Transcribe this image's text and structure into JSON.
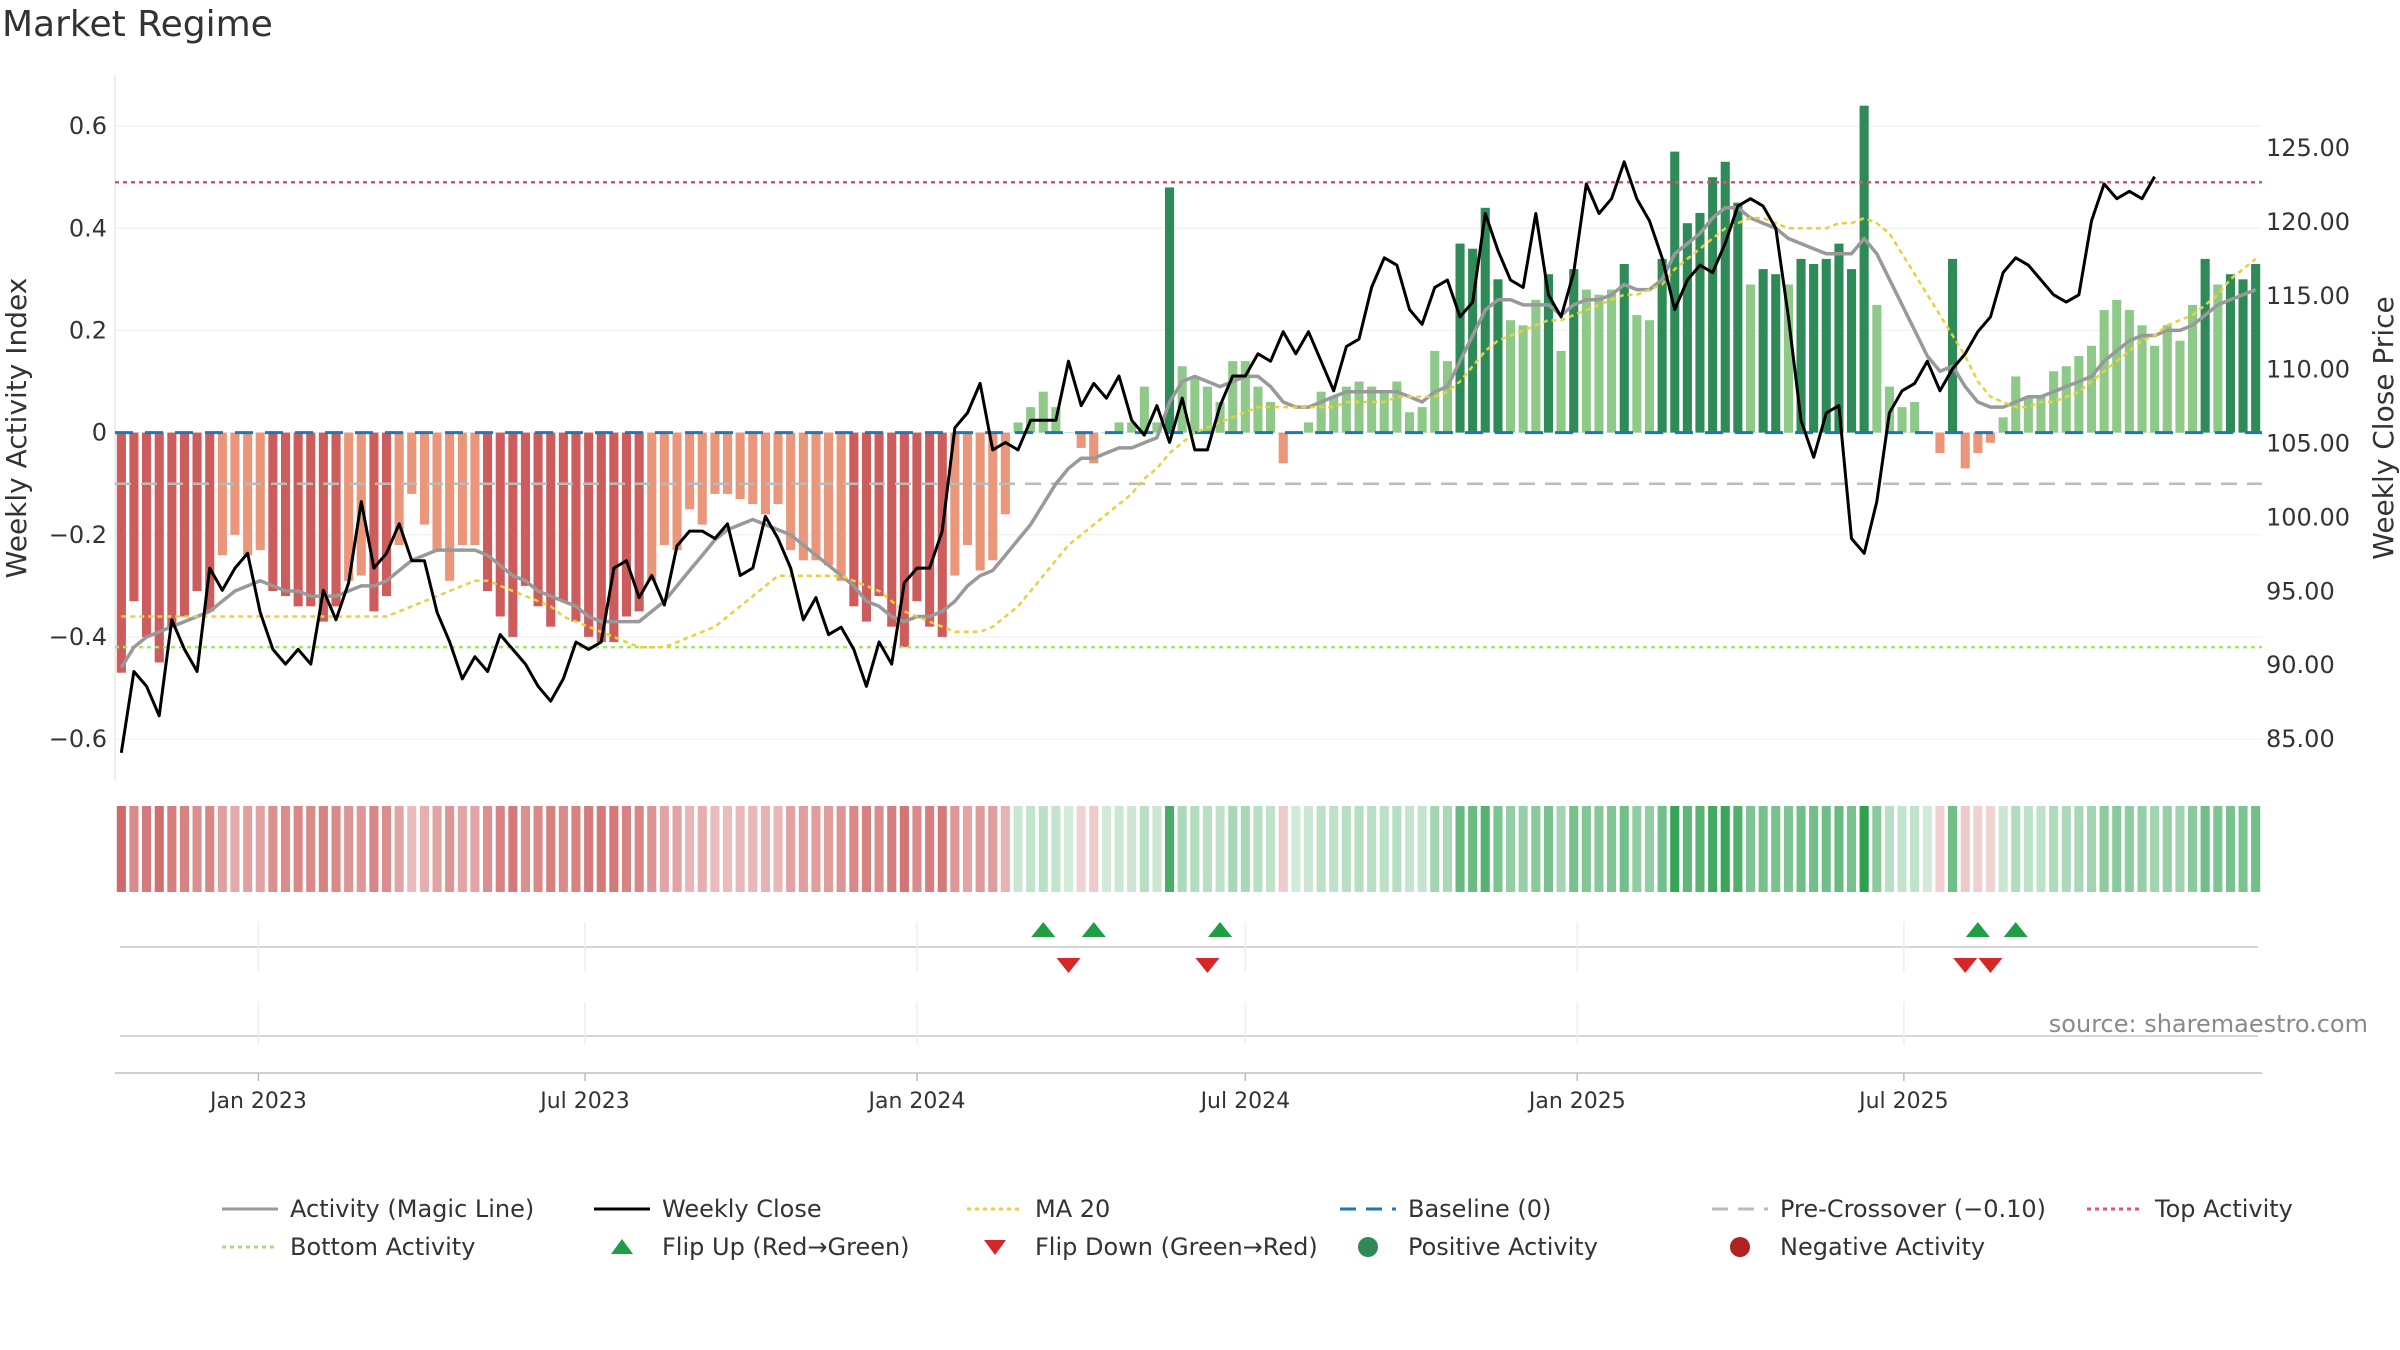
{
  "title": "Market Regime",
  "source": "source: sharemaestro.com",
  "colors": {
    "bar_pos_strong": "#2e8b57",
    "bar_pos_light": "#8fc98a",
    "bar_neg_strong": "#cd5c5c",
    "bar_neg_light": "#e9967a",
    "magic_line": "#999999",
    "weekly_close": "#000000",
    "ma20": "#e6d23c",
    "baseline": "#1f77b4",
    "pre_crossover": "#bbbbbb",
    "top_activity": "#e05070",
    "bottom_activity": "#a6e36b",
    "flip_up": "#1f9e45",
    "flip_down": "#d62728"
  },
  "chart_data": {
    "type": "bar+line",
    "x_axis": {
      "start": "2022-10-17",
      "interval": "weekly",
      "tick_labels": [
        "Jan 2023",
        "Jul 2023",
        "Jan 2024",
        "Jul 2024",
        "Jan 2025",
        "Jul 2025"
      ],
      "tick_dates": [
        "2023-01-01",
        "2023-07-01",
        "2024-01-01",
        "2024-07-01",
        "2025-01-01",
        "2025-07-01"
      ]
    },
    "y_left": {
      "label": "Weekly Activity Index",
      "ticks": [
        -0.6,
        -0.4,
        -0.2,
        0,
        0.2,
        0.4,
        0.6
      ],
      "tick_labels": [
        "−0.6",
        "−0.4",
        "−0.2",
        "0",
        "0.2",
        "0.4",
        "0.6"
      ],
      "range": [
        -0.68,
        0.7
      ]
    },
    "y_right": {
      "label": "Weekly Close Price",
      "ticks": [
        85,
        90,
        95,
        100,
        105,
        110,
        115,
        120,
        125
      ],
      "tick_labels": [
        "85.00",
        "90.00",
        "95.00",
        "100.00",
        "105.00",
        "110.00",
        "115.00",
        "120.00",
        "125.00"
      ]
    },
    "reference_lines": {
      "top_activity": 0.49,
      "bottom_activity": -0.42,
      "pre_crossover": -0.1,
      "baseline": 0
    },
    "activity": [
      -0.47,
      -0.33,
      -0.4,
      -0.45,
      -0.38,
      -0.36,
      -0.31,
      -0.35,
      -0.24,
      -0.2,
      -0.24,
      -0.23,
      -0.31,
      -0.32,
      -0.34,
      -0.34,
      -0.37,
      -0.34,
      -0.29,
      -0.28,
      -0.35,
      -0.32,
      -0.22,
      -0.12,
      -0.18,
      -0.23,
      -0.29,
      -0.22,
      -0.22,
      -0.31,
      -0.36,
      -0.4,
      -0.3,
      -0.34,
      -0.38,
      -0.33,
      -0.37,
      -0.4,
      -0.41,
      -0.41,
      -0.36,
      -0.35,
      -0.29,
      -0.22,
      -0.23,
      -0.15,
      -0.18,
      -0.12,
      -0.12,
      -0.13,
      -0.14,
      -0.16,
      -0.14,
      -0.23,
      -0.25,
      -0.25,
      -0.26,
      -0.29,
      -0.34,
      -0.37,
      -0.32,
      -0.38,
      -0.42,
      -0.33,
      -0.38,
      -0.4,
      -0.28,
      -0.22,
      -0.27,
      -0.25,
      -0.16,
      0.02,
      0.05,
      0.08,
      0.05,
      0.0,
      -0.03,
      -0.06,
      0.0,
      0.02,
      0.02,
      0.09,
      0.02,
      0.48,
      0.13,
      0.11,
      0.09,
      0.06,
      0.14,
      0.14,
      0.09,
      0.06,
      -0.06,
      0.0,
      0.02,
      0.08,
      0.07,
      0.09,
      0.1,
      0.09,
      0.08,
      0.1,
      0.04,
      0.05,
      0.16,
      0.14,
      0.37,
      0.36,
      0.44,
      0.3,
      0.22,
      0.21,
      0.26,
      0.31,
      0.16,
      0.32,
      0.28,
      0.27,
      0.28,
      0.33,
      0.23,
      0.22,
      0.34,
      0.55,
      0.41,
      0.43,
      0.5,
      0.53,
      0.45,
      0.29,
      0.32,
      0.31,
      0.29,
      0.34,
      0.33,
      0.34,
      0.37,
      0.32,
      0.64,
      0.25,
      0.09,
      0.05,
      0.06,
      0.0,
      -0.04,
      0.34,
      -0.07,
      -0.04,
      -0.02,
      0.03,
      0.11,
      0.07,
      0.07,
      0.12,
      0.13,
      0.15,
      0.17,
      0.24,
      0.26,
      0.24,
      0.21,
      0.17,
      0.21,
      0.18,
      0.25,
      0.34,
      0.29,
      0.31,
      0.3,
      0.33
    ],
    "magic_line": [
      -0.46,
      -0.42,
      -0.4,
      -0.39,
      -0.38,
      -0.37,
      -0.36,
      -0.35,
      -0.33,
      -0.31,
      -0.3,
      -0.29,
      -0.3,
      -0.31,
      -0.31,
      -0.32,
      -0.32,
      -0.32,
      -0.31,
      -0.3,
      -0.3,
      -0.29,
      -0.27,
      -0.25,
      -0.24,
      -0.23,
      -0.23,
      -0.23,
      -0.23,
      -0.24,
      -0.26,
      -0.28,
      -0.29,
      -0.31,
      -0.32,
      -0.33,
      -0.34,
      -0.36,
      -0.37,
      -0.37,
      -0.37,
      -0.37,
      -0.35,
      -0.33,
      -0.3,
      -0.27,
      -0.24,
      -0.21,
      -0.19,
      -0.18,
      -0.17,
      -0.18,
      -0.19,
      -0.2,
      -0.22,
      -0.24,
      -0.26,
      -0.28,
      -0.3,
      -0.33,
      -0.34,
      -0.36,
      -0.37,
      -0.36,
      -0.36,
      -0.35,
      -0.33,
      -0.3,
      -0.28,
      -0.27,
      -0.24,
      -0.21,
      -0.18,
      -0.14,
      -0.1,
      -0.07,
      -0.05,
      -0.05,
      -0.04,
      -0.03,
      -0.03,
      -0.02,
      -0.01,
      0.06,
      0.1,
      0.11,
      0.1,
      0.09,
      0.1,
      0.11,
      0.11,
      0.09,
      0.06,
      0.05,
      0.05,
      0.06,
      0.07,
      0.08,
      0.08,
      0.08,
      0.08,
      0.08,
      0.07,
      0.06,
      0.08,
      0.09,
      0.14,
      0.19,
      0.24,
      0.26,
      0.26,
      0.25,
      0.25,
      0.25,
      0.23,
      0.25,
      0.26,
      0.26,
      0.27,
      0.29,
      0.28,
      0.28,
      0.3,
      0.35,
      0.37,
      0.39,
      0.42,
      0.44,
      0.44,
      0.42,
      0.41,
      0.4,
      0.38,
      0.37,
      0.36,
      0.35,
      0.35,
      0.35,
      0.38,
      0.35,
      0.3,
      0.25,
      0.2,
      0.15,
      0.12,
      0.13,
      0.09,
      0.06,
      0.05,
      0.05,
      0.06,
      0.07,
      0.07,
      0.08,
      0.09,
      0.1,
      0.11,
      0.14,
      0.16,
      0.18,
      0.19,
      0.19,
      0.2,
      0.2,
      0.21,
      0.23,
      0.25,
      0.26,
      0.27,
      0.28
    ],
    "ma20": [
      -0.36,
      -0.36,
      -0.36,
      -0.36,
      -0.36,
      -0.36,
      -0.36,
      -0.36,
      -0.36,
      -0.36,
      -0.36,
      -0.36,
      -0.36,
      -0.36,
      -0.36,
      -0.36,
      -0.36,
      -0.36,
      -0.36,
      -0.36,
      -0.36,
      -0.36,
      -0.35,
      -0.34,
      -0.33,
      -0.32,
      -0.31,
      -0.3,
      -0.29,
      -0.29,
      -0.3,
      -0.31,
      -0.32,
      -0.33,
      -0.34,
      -0.36,
      -0.37,
      -0.38,
      -0.39,
      -0.4,
      -0.41,
      -0.42,
      -0.42,
      -0.42,
      -0.41,
      -0.4,
      -0.39,
      -0.38,
      -0.36,
      -0.34,
      -0.32,
      -0.3,
      -0.28,
      -0.28,
      -0.28,
      -0.28,
      -0.28,
      -0.28,
      -0.29,
      -0.3,
      -0.31,
      -0.33,
      -0.35,
      -0.36,
      -0.37,
      -0.38,
      -0.39,
      -0.39,
      -0.39,
      -0.38,
      -0.36,
      -0.34,
      -0.31,
      -0.28,
      -0.25,
      -0.22,
      -0.2,
      -0.18,
      -0.16,
      -0.14,
      -0.12,
      -0.09,
      -0.07,
      -0.04,
      -0.02,
      0.0,
      0.01,
      0.02,
      0.03,
      0.04,
      0.05,
      0.05,
      0.05,
      0.05,
      0.05,
      0.05,
      0.05,
      0.06,
      0.06,
      0.06,
      0.06,
      0.07,
      0.07,
      0.07,
      0.07,
      0.08,
      0.1,
      0.13,
      0.16,
      0.18,
      0.19,
      0.2,
      0.21,
      0.22,
      0.22,
      0.23,
      0.24,
      0.25,
      0.26,
      0.27,
      0.27,
      0.28,
      0.29,
      0.32,
      0.34,
      0.36,
      0.38,
      0.4,
      0.41,
      0.42,
      0.42,
      0.41,
      0.4,
      0.4,
      0.4,
      0.4,
      0.41,
      0.41,
      0.42,
      0.41,
      0.39,
      0.35,
      0.31,
      0.27,
      0.23,
      0.19,
      0.15,
      0.1,
      0.07,
      0.06,
      0.05,
      0.05,
      0.06,
      0.06,
      0.07,
      0.08,
      0.1,
      0.12,
      0.14,
      0.16,
      0.18,
      0.19,
      0.21,
      0.22,
      0.23,
      0.25,
      0.27,
      0.3,
      0.32,
      0.34
    ],
    "weekly_close": [
      84.0,
      89.5,
      88.5,
      86.5,
      93.0,
      91.0,
      89.5,
      96.5,
      95.0,
      96.5,
      97.5,
      93.5,
      91.0,
      90.0,
      91.0,
      90.0,
      95.0,
      93.0,
      95.5,
      101.0,
      96.5,
      97.5,
      99.5,
      97.0,
      97.0,
      93.5,
      91.5,
      89.0,
      90.5,
      89.5,
      92.0,
      91.0,
      90.0,
      88.5,
      87.5,
      89.0,
      91.5,
      91.0,
      91.5,
      96.5,
      97.0,
      94.5,
      96.0,
      94.0,
      98.0,
      99.0,
      99.0,
      98.5,
      99.5,
      96.0,
      96.5,
      100.0,
      98.5,
      96.5,
      93.0,
      94.5,
      92.0,
      92.5,
      91.0,
      88.5,
      91.5,
      90.0,
      95.5,
      96.5,
      96.5,
      99.0,
      106.0,
      107.0,
      109.0,
      104.5,
      105.0,
      104.5,
      106.5,
      106.5,
      106.5,
      110.5,
      107.5,
      109.0,
      108.0,
      109.5,
      106.5,
      105.5,
      107.5,
      105.0,
      108.0,
      104.5,
      104.5,
      107.5,
      109.5,
      109.5,
      111.0,
      110.5,
      112.5,
      111.0,
      112.5,
      110.5,
      108.5,
      111.5,
      112.0,
      115.5,
      117.5,
      117.0,
      114.0,
      113.0,
      115.5,
      116.0,
      113.5,
      114.5,
      120.5,
      118.0,
      116.0,
      115.5,
      120.5,
      115.0,
      113.5,
      116.5,
      122.5,
      120.5,
      121.5,
      124.0,
      121.5,
      120.0,
      117.5,
      114.0,
      116.0,
      117.0,
      116.5,
      118.5,
      121.0,
      121.5,
      121.0,
      119.5,
      113.5,
      106.5,
      104.0,
      107.0,
      107.5,
      98.5,
      97.5,
      101.0,
      107.0,
      108.5,
      109.0,
      110.5,
      108.5,
      110.0,
      111.0,
      112.5,
      113.5,
      116.5,
      117.5,
      117.0,
      116.0,
      115.0,
      114.5,
      115.0,
      120.0,
      122.5,
      121.5,
      122.0,
      121.5,
      123.0
    ],
    "flip_up_index": [
      73,
      77,
      87,
      147,
      150
    ],
    "flip_down_index": [
      75,
      86,
      146,
      148
    ]
  },
  "legend": [
    {
      "key": "magic",
      "label": "Activity (Magic Line)",
      "kind": "line",
      "color": "#999999",
      "dash": "solid"
    },
    {
      "key": "close",
      "label": "Weekly Close",
      "kind": "line",
      "color": "#000000",
      "dash": "solid"
    },
    {
      "key": "ma20",
      "label": "MA 20",
      "kind": "line",
      "color": "#e6d23c",
      "dash": "dot"
    },
    {
      "key": "baseline",
      "label": "Baseline (0)",
      "kind": "line",
      "color": "#1f77b4",
      "dash": "dash"
    },
    {
      "key": "precross",
      "label": "Pre-Crossover (−0.10)",
      "kind": "line",
      "color": "#bbbbbb",
      "dash": "dash"
    },
    {
      "key": "top",
      "label": "Top Activity",
      "kind": "line",
      "color": "#e05070",
      "dash": "dot"
    },
    {
      "key": "bottom",
      "label": "Bottom Activity",
      "kind": "line",
      "color": "#a6e36b",
      "dash": "dot"
    },
    {
      "key": "flipup",
      "label": "Flip Up (Red→Green)",
      "kind": "triangle-up",
      "color": "#1f9e45"
    },
    {
      "key": "flipdown",
      "label": "Flip Down (Green→Red)",
      "kind": "triangle-down",
      "color": "#d62728"
    },
    {
      "key": "pos",
      "label": "Positive Activity",
      "kind": "circle",
      "color": "#2e8b57"
    },
    {
      "key": "neg",
      "label": "Negative Activity",
      "kind": "circle",
      "color": "#b22222"
    }
  ]
}
